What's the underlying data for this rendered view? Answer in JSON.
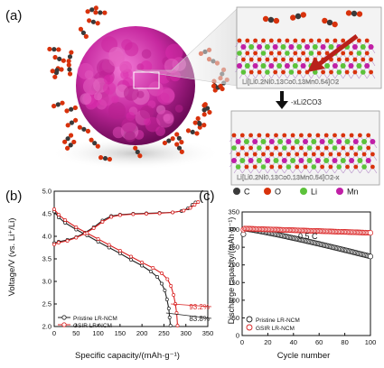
{
  "panels": {
    "a": {
      "label": "(a)",
      "top_formula": "Li[Li0.2Ni0.13Co0.13Mn0.54]O2",
      "bottom_formula": "Li[Li0.2Ni0.13Co0.13Mn0.54]O2-x",
      "arrow_label": "-xLi2CO3",
      "legend": [
        {
          "symbol": "C",
          "color": "#3a3a3a"
        },
        {
          "symbol": "O",
          "color": "#d8320c"
        },
        {
          "symbol": "Li",
          "color": "#5cc23a"
        },
        {
          "symbol": "Mn",
          "color": "#c01fa6"
        }
      ]
    },
    "b": {
      "label": "(b)"
    },
    "c": {
      "label": "(c)"
    }
  },
  "chart_data": [
    {
      "type": "line",
      "panel": "b",
      "xlabel": "Specific capacity/(mAh·g⁻¹)",
      "ylabel": "Voltage/V (vs. Li⁺/Li)",
      "xlim": [
        0,
        350
      ],
      "ylim": [
        2.0,
        5.0
      ],
      "xticks": [
        0,
        50,
        100,
        150,
        200,
        250,
        300,
        350
      ],
      "yticks": [
        2.0,
        2.5,
        3.0,
        3.5,
        4.0,
        4.5,
        5.0
      ],
      "series": [
        {
          "name": "Pristine LR-NCM",
          "color": "#222222",
          "charge": [
            [
              0,
              3.85
            ],
            [
              10,
              3.88
            ],
            [
              30,
              3.92
            ],
            [
              50,
              3.98
            ],
            [
              70,
              4.08
            ],
            [
              90,
              4.2
            ],
            [
              110,
              4.35
            ],
            [
              130,
              4.45
            ],
            [
              150,
              4.48
            ],
            [
              180,
              4.5
            ],
            [
              210,
              4.51
            ],
            [
              240,
              4.52
            ],
            [
              270,
              4.53
            ],
            [
              290,
              4.56
            ],
            [
              305,
              4.62
            ],
            [
              315,
              4.7
            ],
            [
              322,
              4.75
            ]
          ],
          "discharge": [
            [
              0,
              4.55
            ],
            [
              10,
              4.42
            ],
            [
              25,
              4.3
            ],
            [
              50,
              4.15
            ],
            [
              75,
              4.02
            ],
            [
              100,
              3.88
            ],
            [
              125,
              3.75
            ],
            [
              150,
              3.62
            ],
            [
              175,
              3.48
            ],
            [
              200,
              3.35
            ],
            [
              220,
              3.22
            ],
            [
              235,
              3.1
            ],
            [
              245,
              2.95
            ],
            [
              252,
              2.8
            ],
            [
              257,
              2.6
            ],
            [
              261,
              2.4
            ],
            [
              263,
              2.2
            ],
            [
              265,
              2.02
            ]
          ]
        },
        {
          "name": "GSIR LR-NCM",
          "color": "#d91f1f",
          "charge": [
            [
              0,
              3.82
            ],
            [
              10,
              3.86
            ],
            [
              30,
              3.9
            ],
            [
              50,
              3.97
            ],
            [
              70,
              4.06
            ],
            [
              90,
              4.18
            ],
            [
              110,
              4.32
            ],
            [
              130,
              4.43
            ],
            [
              150,
              4.47
            ],
            [
              180,
              4.49
            ],
            [
              210,
              4.5
            ],
            [
              240,
              4.51
            ],
            [
              270,
              4.53
            ],
            [
              295,
              4.57
            ],
            [
              310,
              4.63
            ],
            [
              320,
              4.7
            ],
            [
              328,
              4.76
            ]
          ],
          "discharge": [
            [
              0,
              4.6
            ],
            [
              10,
              4.48
            ],
            [
              25,
              4.36
            ],
            [
              50,
              4.2
            ],
            [
              75,
              4.07
            ],
            [
              100,
              3.94
            ],
            [
              125,
              3.81
            ],
            [
              150,
              3.68
            ],
            [
              175,
              3.55
            ],
            [
              200,
              3.42
            ],
            [
              225,
              3.3
            ],
            [
              245,
              3.18
            ],
            [
              258,
              3.05
            ],
            [
              266,
              2.9
            ],
            [
              272,
              2.7
            ],
            [
              276,
              2.5
            ],
            [
              279,
              2.3
            ],
            [
              281,
              2.02
            ]
          ]
        }
      ],
      "annotations": [
        {
          "text": "93.2%",
          "color": "#d91f1f"
        },
        {
          "text": "83.8%",
          "color": "#222222"
        }
      ],
      "legend_position": "bottom-left"
    },
    {
      "type": "scatter",
      "panel": "c",
      "xlabel": "Cycle number",
      "ylabel": "Discharge capacity/(mAh·g⁻¹)",
      "xlim": [
        0,
        100
      ],
      "ylim": [
        0,
        350
      ],
      "xticks": [
        0,
        20,
        40,
        60,
        80,
        100
      ],
      "yticks": [
        0,
        50,
        100,
        150,
        200,
        250,
        300,
        350
      ],
      "rate_label": "0.5 C",
      "series": [
        {
          "name": "Pristine LR-NCM",
          "color": "#222222",
          "start": 303,
          "end": 224,
          "first": 287
        },
        {
          "name": "GSIR LR-NCM",
          "color": "#d91f1f",
          "start": 303,
          "end": 291,
          "first": 300
        }
      ],
      "legend_position": "bottom-left"
    }
  ]
}
